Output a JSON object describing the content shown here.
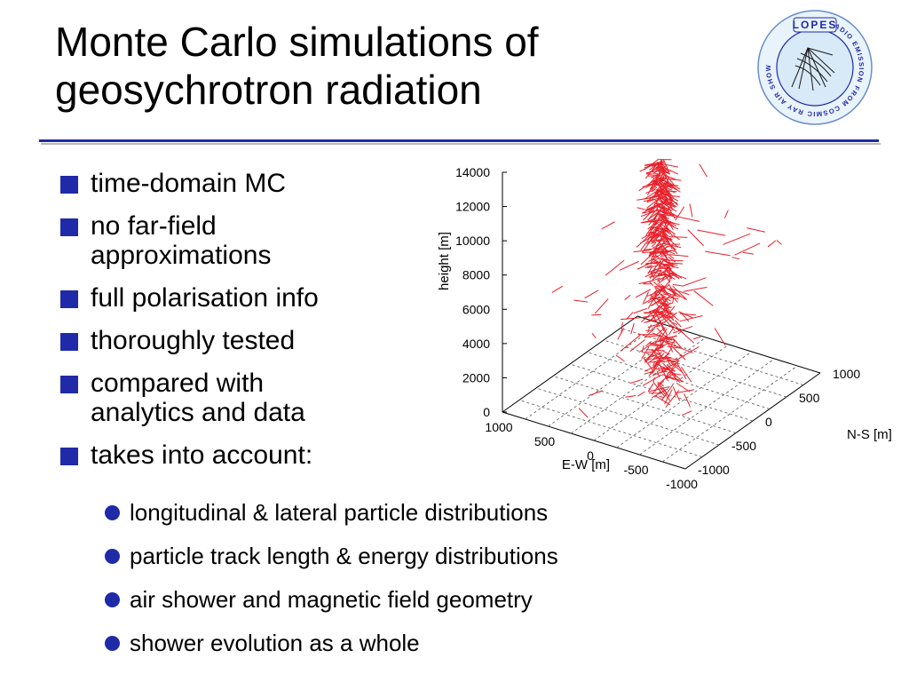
{
  "slide": {
    "title_line1": "Monte Carlo simulations of",
    "title_line2": "geosychrotron radiation"
  },
  "logo": {
    "name": "LOPES",
    "ring_text": "RADIO EMISSION FROM COSMIC RAY AIR SHOWERS",
    "accent_color": "#1f2aa8"
  },
  "bullets": [
    {
      "text": "time-domain MC"
    },
    {
      "text_line1": "no far-field",
      "text_line2": "approximations"
    },
    {
      "text": "full polarisation info"
    },
    {
      "text": "thoroughly tested"
    },
    {
      "text_line1": "compared with",
      "text_line2": "analytics and data"
    },
    {
      "text": "takes into account:"
    }
  ],
  "subbullets": [
    {
      "text": "longitudinal & lateral particle distributions"
    },
    {
      "text": "particle track length & energy distributions"
    },
    {
      "text": "air shower and magnetic field geometry"
    },
    {
      "text": "shower evolution as a whole"
    }
  ],
  "chart_data": {
    "type": "scatter",
    "subtype": "3d-particle-tracks",
    "series_color": "#e8202a",
    "zlabel": "height [m]",
    "xlabel": "E-W [m]",
    "ylabel": "N-S [m]",
    "z_ticks": [
      "0",
      "2000",
      "4000",
      "6000",
      "8000",
      "10000",
      "12000",
      "14000"
    ],
    "x_ticks": [
      "1000",
      "500",
      "0",
      "-500",
      "-1000"
    ],
    "y_ticks": [
      "-1000",
      "-500",
      "0",
      "500",
      "1000"
    ],
    "zlim": [
      0,
      14000
    ],
    "xlim": [
      -1000,
      1000
    ],
    "ylim": [
      -1000,
      1000
    ],
    "grid": true,
    "shower_core": {
      "x": 0,
      "y": 0
    },
    "shower_top_height": 14000
  }
}
